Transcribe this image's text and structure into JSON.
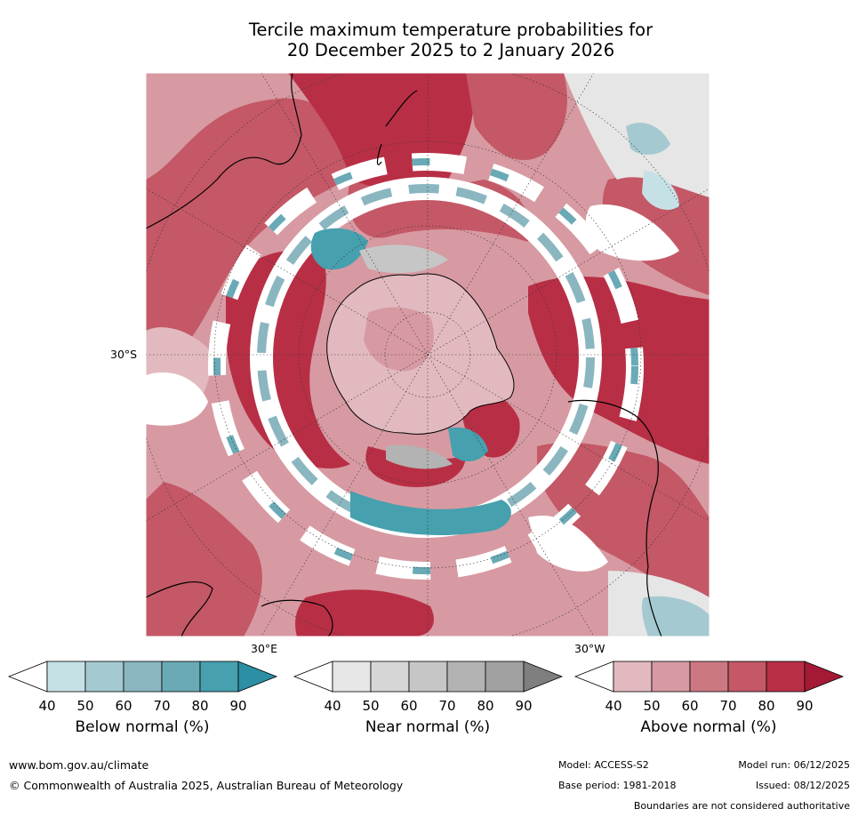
{
  "title": {
    "line1": "Tercile maximum temperature probabilities for",
    "line2": "20 December 2025 to 2 January 2026"
  },
  "map": {
    "lat_label": "30°S",
    "lon_label_left": "30°E",
    "lon_label_right": "30°W"
  },
  "colorbars": [
    {
      "name": "Below normal (%)",
      "ticks": [
        "40",
        "50",
        "60",
        "70",
        "80",
        "90"
      ],
      "colors": [
        "#ffffff",
        "#c6e1e6",
        "#a4c9d0",
        "#8ab6c0",
        "#69aab6",
        "#46a0ae",
        "#2c8fa3"
      ]
    },
    {
      "name": "Near normal (%)",
      "ticks": [
        "40",
        "50",
        "60",
        "70",
        "80",
        "90"
      ],
      "colors": [
        "#ffffff",
        "#e6e6e6",
        "#d6d6d6",
        "#c6c6c6",
        "#b3b3b3",
        "#a0a0a0",
        "#7f7f7f"
      ]
    },
    {
      "name": "Above normal (%)",
      "ticks": [
        "40",
        "50",
        "60",
        "70",
        "80",
        "90"
      ],
      "colors": [
        "#ffffff",
        "#e2b9bf",
        "#d79aa2",
        "#cc7883",
        "#c45866",
        "#b82f45",
        "#a41a36"
      ]
    }
  ],
  "footer": {
    "website": "www.bom.gov.au/climate",
    "copyright": "© Commonwealth of Australia 2025, Australian Bureau of Meteorology",
    "model": "Model: ACCESS-S2",
    "base_period": "Base period: 1981-2018",
    "model_run": "Model run: 06/12/2025",
    "issued": "Issued: 08/12/2025",
    "boundaries": "Boundaries are not considered authoritative"
  }
}
